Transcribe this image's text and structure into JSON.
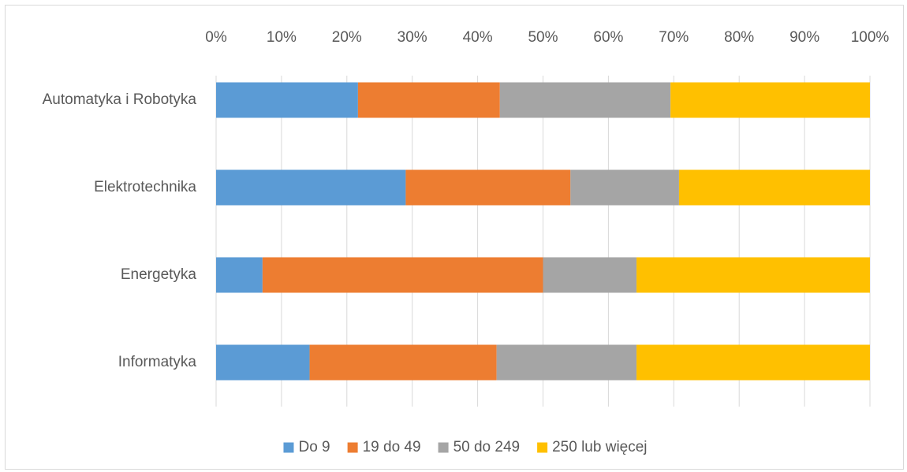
{
  "chart_data": {
    "type": "bar",
    "orientation": "horizontal",
    "stacked": "percent",
    "title": "",
    "xlabel": "",
    "ylabel": "",
    "xlim": [
      0,
      100
    ],
    "x_ticks": [
      "0%",
      "10%",
      "20%",
      "30%",
      "40%",
      "50%",
      "60%",
      "70%",
      "80%",
      "90%",
      "100%"
    ],
    "x_axis_position": "top",
    "grid": "vertical",
    "legend_position": "bottom",
    "categories": [
      "Automatyka i Robotyka",
      "Elektrotechnika",
      "Energetyka",
      "Informatyka"
    ],
    "series": [
      {
        "name": "Do 9",
        "color": "#5b9bd5",
        "values": [
          21.7,
          29.0,
          7.1,
          14.3
        ]
      },
      {
        "name": "19 do 49",
        "color": "#ed7d31",
        "values": [
          21.7,
          25.2,
          42.9,
          28.6
        ]
      },
      {
        "name": "50 do 249",
        "color": "#a5a5a5",
        "values": [
          26.1,
          16.6,
          14.3,
          21.4
        ]
      },
      {
        "name": "250 lub więcej",
        "color": "#ffc000",
        "values": [
          30.5,
          29.2,
          35.7,
          35.7
        ]
      }
    ]
  }
}
